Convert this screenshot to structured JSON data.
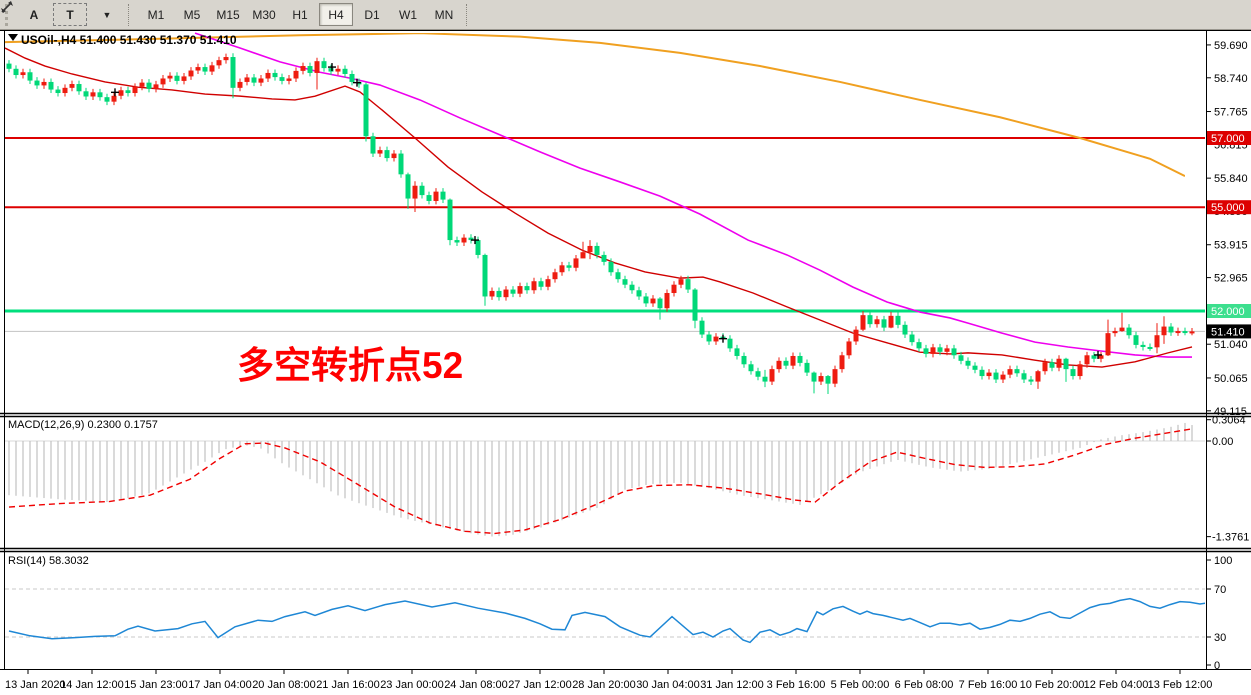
{
  "toolbar": {
    "buttons": [
      {
        "label": "A"
      },
      {
        "label": "T"
      }
    ],
    "timeframes": [
      "M1",
      "M5",
      "M15",
      "M30",
      "H1",
      "H4",
      "D1",
      "W1",
      "MN"
    ],
    "active_timeframe": "H4"
  },
  "chart": {
    "symbol_title": "USOil-,H4 51.400 51.430 51.370 51.410",
    "annotation": "多空转折点52",
    "price_axis": {
      "ticks": [
        59.69,
        58.74,
        57.765,
        56.815,
        55.84,
        54.89,
        53.915,
        52.965,
        51.99,
        51.04,
        50.065,
        49.115
      ],
      "badges": [
        {
          "label": "57.000",
          "price": 57.0,
          "bg": "#dd0000",
          "fg": "#ffffff"
        },
        {
          "label": "55.000",
          "price": 55.0,
          "bg": "#dd0000",
          "fg": "#ffffff"
        },
        {
          "label": "52.000",
          "price": 52.0,
          "bg": "#3cdf8e",
          "fg": "#ffffff"
        },
        {
          "label": "51.410",
          "price": 51.41,
          "bg": "#000000",
          "fg": "#ffffff"
        }
      ]
    },
    "hlines": [
      {
        "price": 57.0,
        "color": "#dd0000",
        "width": 2,
        "name": "resistance-57"
      },
      {
        "price": 55.0,
        "color": "#dd0000",
        "width": 2,
        "name": "resistance-55"
      },
      {
        "price": 52.0,
        "color": "#00df7d",
        "width": 3,
        "name": "pivot-52"
      },
      {
        "price": 51.41,
        "color": "#c2c2c2",
        "width": 1,
        "name": "current-price"
      }
    ]
  },
  "time_axis": {
    "labels": [
      "13 Jan 2020",
      "14 Jan 12:00",
      "15 Jan 23:00",
      "17 Jan 04:00",
      "20 Jan 08:00",
      "21 Jan 16:00",
      "23 Jan 00:00",
      "24 Jan 08:00",
      "27 Jan 12:00",
      "28 Jan 20:00",
      "30 Jan 04:00",
      "31 Jan 12:00",
      "3 Feb 16:00",
      "5 Feb 00:00",
      "6 Feb 08:00",
      "7 Feb 16:00",
      "10 Feb 20:00",
      "12 Feb 04:00",
      "13 Feb 12:00"
    ]
  },
  "macd_panel": {
    "label": "MACD(12,26,9) 0.2300 0.1757",
    "ticks": [
      {
        "label": "0.3064",
        "v": 0.3064
      },
      {
        "label": "0.00",
        "v": 0
      },
      {
        "label": "-1.3761",
        "v": -1.3761
      }
    ]
  },
  "rsi_panel": {
    "label": "RSI(14) 58.3032",
    "ticks": [
      {
        "label": "100",
        "v": 100
      },
      {
        "label": "70",
        "v": 70
      },
      {
        "label": "30",
        "v": 30
      },
      {
        "label": "0",
        "v": 0
      }
    ],
    "levels": [
      70,
      30
    ]
  },
  "chart_data": {
    "type": "candlestick",
    "symbol": "USOil",
    "timeframe": "H4",
    "ohlc_current": {
      "open": 51.4,
      "high": 51.43,
      "low": 51.37,
      "close": 51.41
    },
    "up_color": "#ee1c10",
    "down_color": "#00d878",
    "first_open": 59.15,
    "closes": [
      59.0,
      58.82,
      58.9,
      58.66,
      58.52,
      58.62,
      58.4,
      58.3,
      58.45,
      58.56,
      58.35,
      58.2,
      58.32,
      58.18,
      58.05,
      58.22,
      58.38,
      58.3,
      58.48,
      58.6,
      58.42,
      58.55,
      58.72,
      58.8,
      58.65,
      58.78,
      58.95,
      59.05,
      58.92,
      59.1,
      59.25,
      59.34,
      58.45,
      58.62,
      58.75,
      58.6,
      58.72,
      58.88,
      58.76,
      58.65,
      58.72,
      58.94,
      59.08,
      58.88,
      59.22,
      59.02,
      58.92,
      59.0,
      58.85,
      58.62,
      58.55,
      57.05,
      56.55,
      56.65,
      56.42,
      56.55,
      55.95,
      55.25,
      55.62,
      55.35,
      55.18,
      55.45,
      55.22,
      54.05,
      53.98,
      54.12,
      54.05,
      53.62,
      52.42,
      52.58,
      52.4,
      52.62,
      52.5,
      52.72,
      52.6,
      52.86,
      52.7,
      52.92,
      53.12,
      53.32,
      53.25,
      53.52,
      53.7,
      53.88,
      53.62,
      53.42,
      53.12,
      52.92,
      52.76,
      52.6,
      52.42,
      52.22,
      52.36,
      52.08,
      52.52,
      52.76,
      52.92,
      52.62,
      51.72,
      51.32,
      51.12,
      51.26,
      51.2,
      50.92,
      50.7,
      50.46,
      50.26,
      50.1,
      49.96,
      50.32,
      50.56,
      50.42,
      50.7,
      50.5,
      50.22,
      49.96,
      50.12,
      49.9,
      50.32,
      50.72,
      51.12,
      51.46,
      51.88,
      51.62,
      51.76,
      51.52,
      51.86,
      51.6,
      51.32,
      51.1,
      50.92,
      50.76,
      50.95,
      50.82,
      50.92,
      50.72,
      50.56,
      50.42,
      50.3,
      50.12,
      50.22,
      50.02,
      50.16,
      50.32,
      50.2,
      50.02,
      49.96,
      50.26,
      50.52,
      50.36,
      50.62,
      50.32,
      50.12,
      50.46,
      50.72,
      50.62,
      50.72,
      51.36,
      51.42,
      51.52,
      51.3,
      51.02,
      50.96,
      50.95,
      51.3,
      51.55,
      51.38,
      51.42,
      51.4,
      51.41
    ],
    "extremes": {
      "32": [
        59.45,
        58.15
      ],
      "44": [
        59.32,
        58.4
      ],
      "51": [
        58.6,
        56.9
      ],
      "57": [
        56.0,
        54.95
      ],
      "58": [
        55.75,
        54.86
      ],
      "63": [
        55.25,
        53.9
      ],
      "68": [
        53.66,
        52.15
      ],
      "82": [
        54.0,
        53.55
      ],
      "83": [
        54.05,
        53.5
      ],
      "93": [
        52.4,
        51.75
      ],
      "98": [
        52.66,
        51.5
      ],
      "108": [
        50.3,
        49.8
      ],
      "115": [
        50.25,
        49.62
      ],
      "117": [
        50.15,
        49.6
      ],
      "122": [
        52.0,
        51.42
      ],
      "126": [
        51.98,
        51.5
      ],
      "147": [
        50.3,
        49.75
      ],
      "151": [
        50.65,
        49.95
      ],
      "157": [
        51.75,
        50.7
      ],
      "159": [
        51.95,
        51.4
      ],
      "164": [
        51.65,
        50.78
      ],
      "165": [
        51.85,
        51.05
      ]
    },
    "ma_orange": [
      [
        5,
        59.77
      ],
      [
        150,
        59.86
      ],
      [
        300,
        59.97
      ],
      [
        420,
        60.03
      ],
      [
        520,
        59.93
      ],
      [
        600,
        59.75
      ],
      [
        680,
        59.46
      ],
      [
        760,
        59.08
      ],
      [
        840,
        58.62
      ],
      [
        920,
        58.1
      ],
      [
        1000,
        57.6
      ],
      [
        1080,
        57.0
      ],
      [
        1150,
        56.4
      ],
      [
        1185,
        55.9
      ]
    ],
    "ma_magenta": [
      [
        195,
        60.03
      ],
      [
        240,
        59.6
      ],
      [
        280,
        59.2
      ],
      [
        320,
        58.9
      ],
      [
        350,
        58.73
      ],
      [
        380,
        58.53
      ],
      [
        420,
        58.1
      ],
      [
        460,
        57.58
      ],
      [
        500,
        57.09
      ],
      [
        540,
        56.6
      ],
      [
        580,
        56.13
      ],
      [
        620,
        55.73
      ],
      [
        660,
        55.32
      ],
      [
        700,
        54.8
      ],
      [
        748,
        54.05
      ],
      [
        787,
        53.62
      ],
      [
        820,
        53.18
      ],
      [
        853,
        52.69
      ],
      [
        887,
        52.26
      ],
      [
        920,
        51.97
      ],
      [
        950,
        51.8
      ],
      [
        968,
        51.65
      ],
      [
        1002,
        51.36
      ],
      [
        1035,
        51.1
      ],
      [
        1068,
        50.96
      ],
      [
        1102,
        50.84
      ],
      [
        1135,
        50.73
      ],
      [
        1168,
        50.67
      ],
      [
        1192,
        50.67
      ]
    ],
    "ma_red": [
      [
        5,
        59.6
      ],
      [
        25,
        59.31
      ],
      [
        45,
        59.08
      ],
      [
        72,
        58.85
      ],
      [
        105,
        58.62
      ],
      [
        138,
        58.47
      ],
      [
        172,
        58.39
      ],
      [
        205,
        58.27
      ],
      [
        240,
        58.21
      ],
      [
        272,
        58.13
      ],
      [
        295,
        58.1
      ],
      [
        315,
        58.21
      ],
      [
        345,
        58.5
      ],
      [
        360,
        58.33
      ],
      [
        382,
        57.81
      ],
      [
        415,
        57.0
      ],
      [
        448,
        56.16
      ],
      [
        482,
        55.44
      ],
      [
        515,
        54.83
      ],
      [
        548,
        54.25
      ],
      [
        582,
        53.76
      ],
      [
        615,
        53.39
      ],
      [
        645,
        53.13
      ],
      [
        680,
        52.95
      ],
      [
        703,
        52.98
      ],
      [
        720,
        52.84
      ],
      [
        753,
        52.52
      ],
      [
        787,
        52.12
      ],
      [
        820,
        51.74
      ],
      [
        853,
        51.36
      ],
      [
        887,
        51.08
      ],
      [
        920,
        50.81
      ],
      [
        950,
        50.76
      ],
      [
        968,
        50.79
      ],
      [
        1002,
        50.73
      ],
      [
        1035,
        50.58
      ],
      [
        1068,
        50.44
      ],
      [
        1102,
        50.38
      ],
      [
        1135,
        50.53
      ],
      [
        1168,
        50.79
      ],
      [
        1192,
        50.96
      ]
    ],
    "markers": [
      [
        115,
        58.32
      ],
      [
        332,
        59.05
      ],
      [
        357,
        58.6
      ],
      [
        475,
        54.05
      ],
      [
        723,
        51.2
      ],
      [
        1098,
        50.73
      ]
    ],
    "macd": {
      "hist_color": "#c2c2c2",
      "signal_color": "#f00000",
      "histogram_anchors": [
        [
          9,
          -0.78
        ],
        [
          60,
          -0.84
        ],
        [
          110,
          -0.88
        ],
        [
          150,
          -0.75
        ],
        [
          180,
          -0.5
        ],
        [
          205,
          -0.3
        ],
        [
          225,
          -0.12
        ],
        [
          245,
          -0.06
        ],
        [
          260,
          -0.1
        ],
        [
          285,
          -0.35
        ],
        [
          310,
          -0.55
        ],
        [
          340,
          -0.8
        ],
        [
          370,
          -0.95
        ],
        [
          400,
          -1.1
        ],
        [
          430,
          -1.2
        ],
        [
          460,
          -1.3
        ],
        [
          490,
          -1.3761
        ],
        [
          510,
          -1.36
        ],
        [
          540,
          -1.25
        ],
        [
          570,
          -1.1
        ],
        [
          600,
          -0.95
        ],
        [
          625,
          -0.7
        ],
        [
          650,
          -0.62
        ],
        [
          680,
          -0.6
        ],
        [
          710,
          -0.68
        ],
        [
          740,
          -0.78
        ],
        [
          770,
          -0.85
        ],
        [
          800,
          -0.92
        ],
        [
          830,
          -0.7
        ],
        [
          860,
          -0.45
        ],
        [
          897,
          -0.27
        ],
        [
          930,
          -0.38
        ],
        [
          960,
          -0.44
        ],
        [
          990,
          -0.4
        ],
        [
          1020,
          -0.3
        ],
        [
          1050,
          -0.2
        ],
        [
          1080,
          -0.1
        ],
        [
          1100,
          0.02
        ],
        [
          1120,
          0.08
        ],
        [
          1140,
          0.12
        ],
        [
          1155,
          0.16
        ],
        [
          1170,
          0.2
        ],
        [
          1185,
          0.26
        ],
        [
          1192,
          0.23
        ]
      ],
      "signal_anchors": [
        [
          9,
          -0.95
        ],
        [
          60,
          -0.9
        ],
        [
          110,
          -0.87
        ],
        [
          150,
          -0.78
        ],
        [
          190,
          -0.55
        ],
        [
          220,
          -0.25
        ],
        [
          245,
          -0.04
        ],
        [
          265,
          -0.03
        ],
        [
          285,
          -0.1
        ],
        [
          320,
          -0.3
        ],
        [
          355,
          -0.6
        ],
        [
          395,
          -0.95
        ],
        [
          430,
          -1.18
        ],
        [
          465,
          -1.3
        ],
        [
          495,
          -1.33
        ],
        [
          525,
          -1.28
        ],
        [
          560,
          -1.13
        ],
        [
          595,
          -0.92
        ],
        [
          625,
          -0.72
        ],
        [
          655,
          -0.64
        ],
        [
          690,
          -0.63
        ],
        [
          725,
          -0.68
        ],
        [
          760,
          -0.76
        ],
        [
          795,
          -0.85
        ],
        [
          815,
          -0.88
        ],
        [
          840,
          -0.6
        ],
        [
          870,
          -0.3
        ],
        [
          897,
          -0.16
        ],
        [
          925,
          -0.25
        ],
        [
          955,
          -0.34
        ],
        [
          985,
          -0.38
        ],
        [
          1015,
          -0.37
        ],
        [
          1045,
          -0.33
        ],
        [
          1075,
          -0.2
        ],
        [
          1105,
          -0.05
        ],
        [
          1135,
          0.04
        ],
        [
          1165,
          0.11
        ],
        [
          1192,
          0.1757
        ]
      ]
    },
    "rsi": {
      "color": "#1e87d5",
      "line_anchors": [
        [
          9,
          35
        ],
        [
          30,
          31
        ],
        [
          52,
          28.5
        ],
        [
          75,
          29.5
        ],
        [
          95,
          30.5
        ],
        [
          115,
          31
        ],
        [
          128,
          36.5
        ],
        [
          138,
          39
        ],
        [
          155,
          35
        ],
        [
          178,
          37
        ],
        [
          192,
          41
        ],
        [
          205,
          43
        ],
        [
          218,
          29.5
        ],
        [
          235,
          38.5
        ],
        [
          258,
          44
        ],
        [
          272,
          43
        ],
        [
          285,
          47
        ],
        [
          305,
          51
        ],
        [
          315,
          48
        ],
        [
          332,
          53
        ],
        [
          348,
          56
        ],
        [
          365,
          52
        ],
        [
          385,
          57
        ],
        [
          405,
          60
        ],
        [
          432,
          55
        ],
        [
          455,
          58.5
        ],
        [
          478,
          54
        ],
        [
          505,
          50
        ],
        [
          525,
          45.5
        ],
        [
          540,
          41
        ],
        [
          552,
          36.5
        ],
        [
          565,
          36
        ],
        [
          572,
          48
        ],
        [
          585,
          50.5
        ],
        [
          605,
          47
        ],
        [
          620,
          38.5
        ],
        [
          640,
          31.5
        ],
        [
          650,
          30
        ],
        [
          672,
          47
        ],
        [
          693,
          32
        ],
        [
          703,
          34
        ],
        [
          713,
          30
        ],
        [
          723,
          35
        ],
        [
          730,
          37
        ],
        [
          743,
          27.5
        ],
        [
          750,
          25.5
        ],
        [
          760,
          34
        ],
        [
          770,
          36
        ],
        [
          780,
          31.5
        ],
        [
          790,
          34
        ],
        [
          797,
          37
        ],
        [
          807,
          34.5
        ],
        [
          817,
          51
        ],
        [
          823,
          48.5
        ],
        [
          833,
          53.5
        ],
        [
          843,
          55.5
        ],
        [
          853,
          51.5
        ],
        [
          860,
          49
        ],
        [
          867,
          51.5
        ],
        [
          873,
          49.5
        ],
        [
          883,
          48
        ],
        [
          893,
          46
        ],
        [
          903,
          44
        ],
        [
          910,
          45.5
        ],
        [
          920,
          42
        ],
        [
          930,
          38.5
        ],
        [
          940,
          41.5
        ],
        [
          950,
          41.5
        ],
        [
          960,
          40
        ],
        [
          970,
          41.5
        ],
        [
          980,
          36.5
        ],
        [
          990,
          38
        ],
        [
          1000,
          40.5
        ],
        [
          1010,
          44
        ],
        [
          1020,
          43
        ],
        [
          1030,
          45.5
        ],
        [
          1040,
          49
        ],
        [
          1050,
          51
        ],
        [
          1060,
          46.5
        ],
        [
          1070,
          45.5
        ],
        [
          1080,
          50
        ],
        [
          1090,
          54.5
        ],
        [
          1100,
          57
        ],
        [
          1110,
          58
        ],
        [
          1120,
          60.5
        ],
        [
          1130,
          62
        ],
        [
          1140,
          59.5
        ],
        [
          1150,
          55.5
        ],
        [
          1160,
          54
        ],
        [
          1170,
          57
        ],
        [
          1180,
          59.5
        ],
        [
          1190,
          59
        ],
        [
          1200,
          57.5
        ],
        [
          1206,
          58.3
        ]
      ]
    }
  }
}
